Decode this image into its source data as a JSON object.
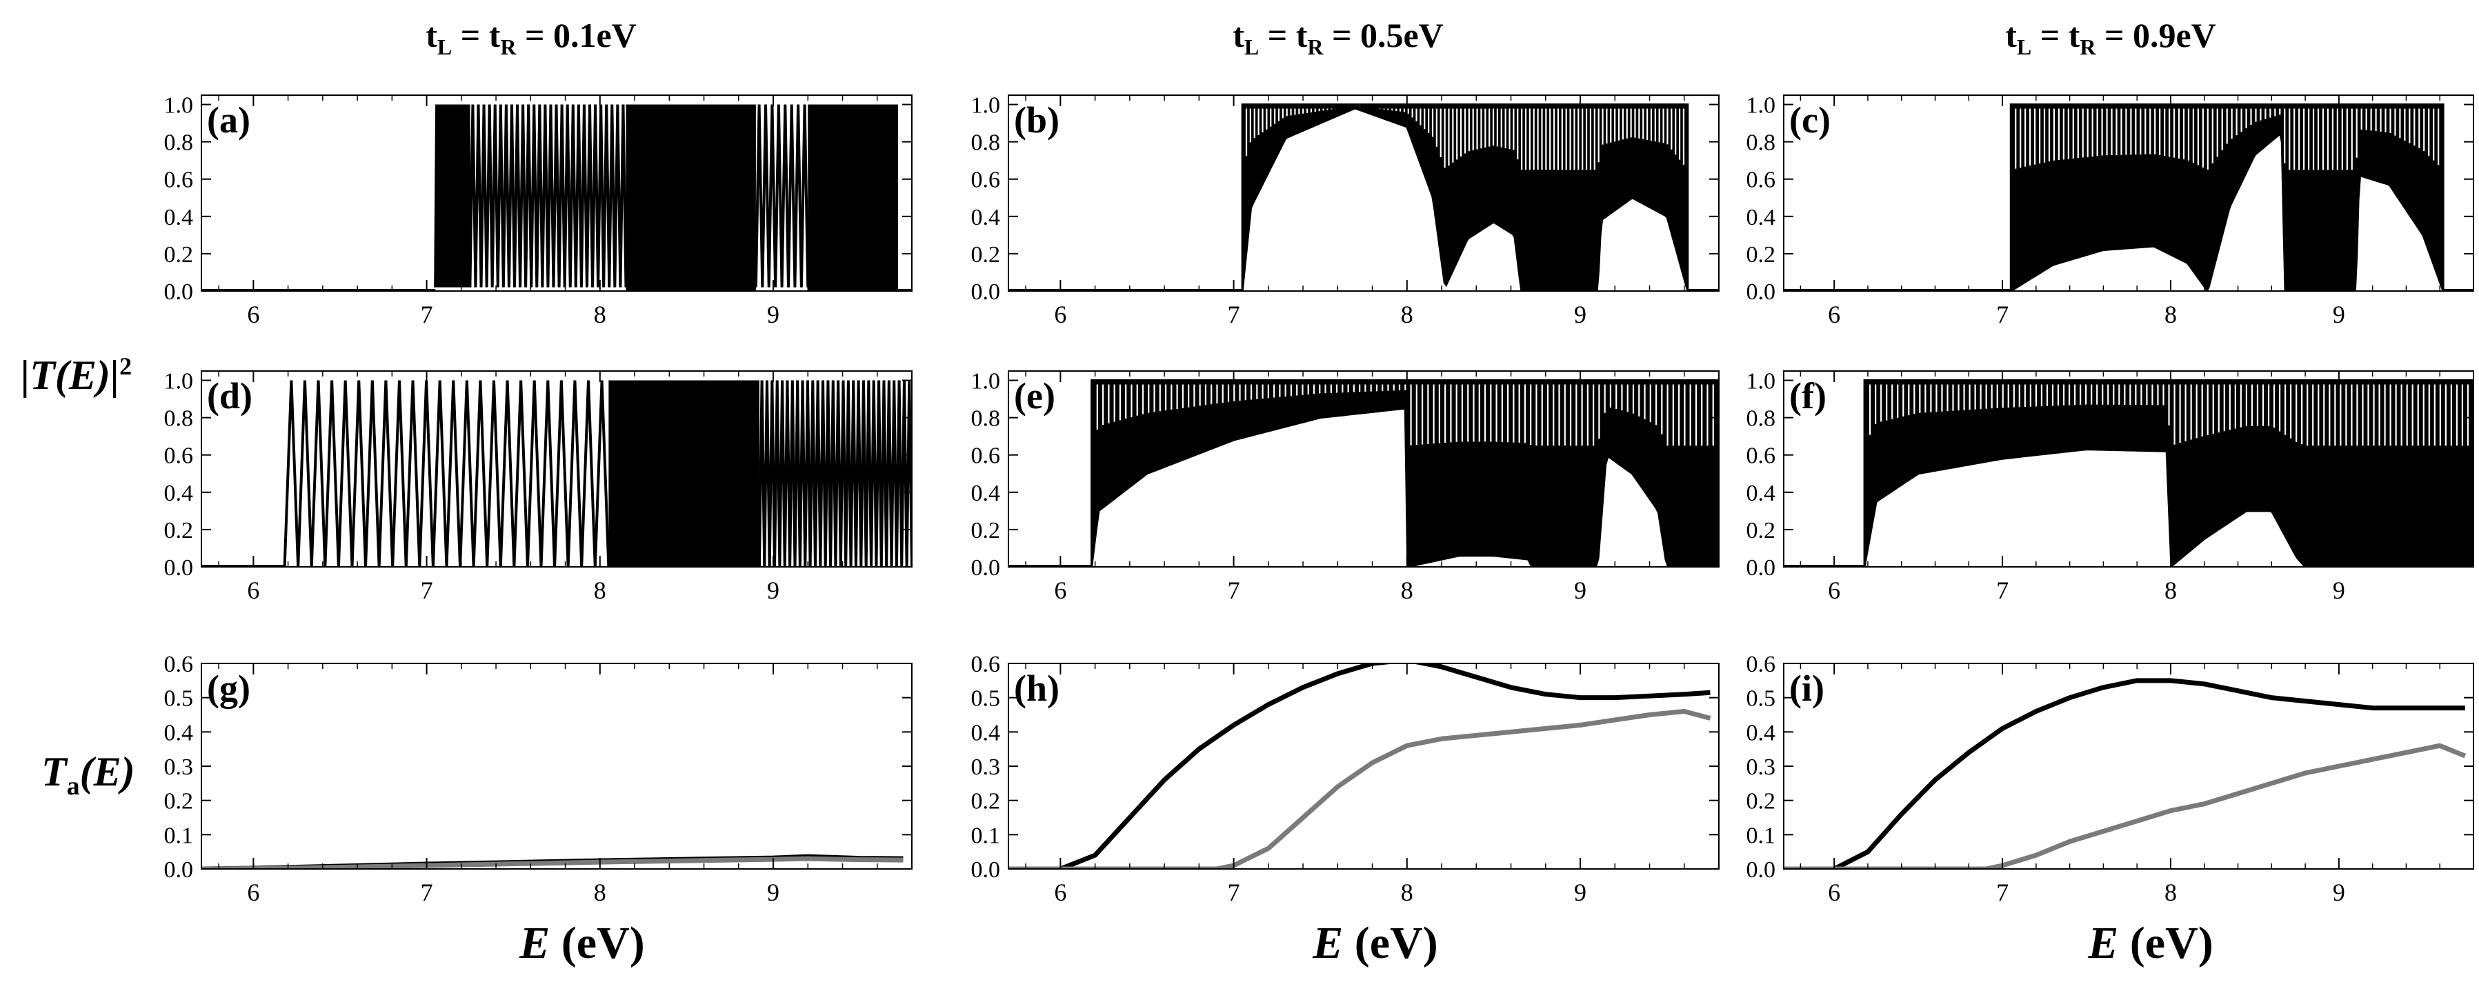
{
  "figure": {
    "column_titles": [
      {
        "value": "0.1eV",
        "t_left": "t",
        "sub_left": "L",
        "t_right": "t",
        "sub_right": "R"
      },
      {
        "value": "0.5eV",
        "t_left": "t",
        "sub_left": "L",
        "t_right": "t",
        "sub_right": "R"
      },
      {
        "value": "0.9eV",
        "t_left": "t",
        "sub_left": "L",
        "t_right": "t",
        "sub_right": "R"
      }
    ],
    "row_labels": {
      "transmission": {
        "open": "|",
        "main": "T(E)",
        "close": "|",
        "sup": "2"
      },
      "average": {
        "main": "T",
        "sub": "a",
        "arg": "(E)"
      }
    },
    "x_axis_label": {
      "symbol": "E",
      "unit": "(eV)"
    },
    "colors": {
      "line": "#000000",
      "series2": "#7a7a7a",
      "frame": "#000000",
      "background": "#ffffff"
    }
  },
  "chart_data": [
    {
      "type": "line",
      "panel": "(a)",
      "row": 0,
      "col": 0,
      "xlim": [
        5.7,
        9.8
      ],
      "ylim": [
        0,
        1.05
      ],
      "xticks": [
        6,
        7,
        8,
        9
      ],
      "yticks": [
        0.0,
        0.2,
        0.4,
        0.6,
        0.8,
        1.0
      ],
      "ytick_labels": [
        "0.0",
        "0.2",
        "0.4",
        "0.6",
        "0.8",
        "1.0"
      ],
      "series": [
        {
          "name": "|T(E)|^2",
          "kind": "oscillation",
          "onset": 7.05,
          "end": 9.72,
          "segments": [
            [
              7.05,
              7.25,
              13,
              1.0,
              0.02
            ],
            [
              7.25,
              8.15,
              28,
              1.0,
              0.02
            ],
            [
              8.15,
              8.9,
              0,
              1.0,
              0.0
            ],
            [
              8.9,
              9.2,
              8,
              1.0,
              0.02
            ],
            [
              9.2,
              9.72,
              0,
              1.0,
              0.0
            ]
          ]
        }
      ]
    },
    {
      "type": "line",
      "panel": "(b)",
      "row": 0,
      "col": 1,
      "xlim": [
        5.7,
        9.8
      ],
      "ylim": [
        0,
        1.05
      ],
      "xticks": [
        6,
        7,
        8,
        9
      ],
      "yticks": [
        0.0,
        0.2,
        0.4,
        0.6,
        0.8,
        1.0
      ],
      "ytick_labels": [
        "0.0",
        "0.2",
        "0.4",
        "0.6",
        "0.8",
        "1.0"
      ],
      "series": [
        {
          "name": "|T(E)|^2",
          "kind": "envelope",
          "onset": 7.05,
          "end": 9.62,
          "band_lower": [
            [
              7.05,
              0.0
            ],
            [
              7.1,
              0.45
            ],
            [
              7.3,
              0.82
            ],
            [
              7.7,
              0.98
            ],
            [
              8.0,
              0.88
            ],
            [
              8.15,
              0.5
            ],
            [
              8.22,
              0.02
            ],
            [
              8.35,
              0.28
            ],
            [
              8.5,
              0.37
            ],
            [
              8.62,
              0.3
            ],
            [
              8.66,
              0.0
            ],
            [
              9.1,
              0.0
            ],
            [
              9.12,
              0.38
            ],
            [
              9.3,
              0.5
            ],
            [
              9.5,
              0.4
            ],
            [
              9.62,
              0.0
            ]
          ],
          "band_upper": [
            [
              7.05,
              1.0
            ],
            [
              9.62,
              1.0
            ]
          ],
          "stripe_count": 110
        }
      ]
    },
    {
      "type": "line",
      "panel": "(c)",
      "row": 0,
      "col": 2,
      "xlim": [
        5.7,
        9.8
      ],
      "ylim": [
        0,
        1.05
      ],
      "xticks": [
        6,
        7,
        8,
        9
      ],
      "yticks": [
        0.0,
        0.2,
        0.4,
        0.6,
        0.8,
        1.0
      ],
      "ytick_labels": [
        "0.0",
        "0.2",
        "0.4",
        "0.6",
        "0.8",
        "1.0"
      ],
      "series": [
        {
          "name": "|T(E)|^2",
          "kind": "envelope",
          "onset": 7.05,
          "end": 9.62,
          "band_lower": [
            [
              7.05,
              0.0
            ],
            [
              7.3,
              0.14
            ],
            [
              7.6,
              0.22
            ],
            [
              7.9,
              0.24
            ],
            [
              8.1,
              0.15
            ],
            [
              8.22,
              0.0
            ],
            [
              8.35,
              0.45
            ],
            [
              8.5,
              0.73
            ],
            [
              8.66,
              0.85
            ],
            [
              8.68,
              0.0
            ],
            [
              9.1,
              0.0
            ],
            [
              9.12,
              0.62
            ],
            [
              9.3,
              0.57
            ],
            [
              9.5,
              0.3
            ],
            [
              9.62,
              0.0
            ]
          ],
          "band_upper": [
            [
              7.05,
              1.0
            ],
            [
              9.62,
              1.0
            ]
          ],
          "stripe_count": 90
        }
      ]
    },
    {
      "type": "line",
      "panel": "(d)",
      "row": 1,
      "col": 0,
      "xlim": [
        5.7,
        9.8
      ],
      "ylim": [
        0,
        1.05
      ],
      "xticks": [
        6,
        7,
        8,
        9
      ],
      "yticks": [
        0.0,
        0.2,
        0.4,
        0.6,
        0.8,
        1.0
      ],
      "ytick_labels": [
        "0.0",
        "0.2",
        "0.4",
        "0.6",
        "0.8",
        "1.0"
      ],
      "series": [
        {
          "name": "|T(E)|^2",
          "kind": "oscillation",
          "onset": 6.18,
          "end": 9.8,
          "segments": [
            [
              6.18,
              8.05,
              24,
              1.0,
              0.0
            ],
            [
              8.05,
              8.92,
              0,
              1.0,
              0.0
            ],
            [
              8.92,
              9.8,
              30,
              1.0,
              0.0
            ]
          ]
        }
      ]
    },
    {
      "type": "line",
      "panel": "(e)",
      "row": 1,
      "col": 1,
      "xlim": [
        5.7,
        9.8
      ],
      "ylim": [
        0,
        1.05
      ],
      "xticks": [
        6,
        7,
        8,
        9
      ],
      "yticks": [
        0.0,
        0.2,
        0.4,
        0.6,
        0.8,
        1.0
      ],
      "ytick_labels": [
        "0.0",
        "0.2",
        "0.4",
        "0.6",
        "0.8",
        "1.0"
      ],
      "series": [
        {
          "name": "|T(E)|^2",
          "kind": "envelope",
          "onset": 6.18,
          "end": 9.8,
          "band_lower": [
            [
              6.18,
              0.0
            ],
            [
              6.22,
              0.3
            ],
            [
              6.5,
              0.5
            ],
            [
              7.0,
              0.68
            ],
            [
              7.5,
              0.8
            ],
            [
              7.99,
              0.85
            ],
            [
              8.0,
              0.0
            ],
            [
              8.3,
              0.06
            ],
            [
              8.5,
              0.06
            ],
            [
              8.7,
              0.04
            ],
            [
              8.72,
              0.0
            ],
            [
              9.1,
              0.0
            ],
            [
              9.15,
              0.6
            ],
            [
              9.3,
              0.5
            ],
            [
              9.45,
              0.3
            ],
            [
              9.5,
              0.0
            ],
            [
              9.8,
              0.0
            ]
          ],
          "band_upper": [
            [
              6.18,
              1.0
            ],
            [
              9.8,
              1.0
            ]
          ],
          "stripe_count": 110
        }
      ]
    },
    {
      "type": "line",
      "panel": "(f)",
      "row": 1,
      "col": 2,
      "xlim": [
        5.7,
        9.8
      ],
      "ylim": [
        0,
        1.05
      ],
      "xticks": [
        6,
        7,
        8,
        9
      ],
      "yticks": [
        0.0,
        0.2,
        0.4,
        0.6,
        0.8,
        1.0
      ],
      "ytick_labels": [
        "0.0",
        "0.2",
        "0.4",
        "0.6",
        "0.8",
        "1.0"
      ],
      "series": [
        {
          "name": "|T(E)|^2",
          "kind": "envelope",
          "onset": 6.18,
          "end": 9.8,
          "band_lower": [
            [
              6.18,
              0.0
            ],
            [
              6.25,
              0.35
            ],
            [
              6.5,
              0.5
            ],
            [
              7.0,
              0.58
            ],
            [
              7.5,
              0.63
            ],
            [
              7.98,
              0.62
            ],
            [
              8.0,
              0.0
            ],
            [
              8.2,
              0.15
            ],
            [
              8.45,
              0.3
            ],
            [
              8.6,
              0.3
            ],
            [
              8.75,
              0.05
            ],
            [
              8.8,
              0.0
            ],
            [
              9.8,
              0.0
            ]
          ],
          "band_upper": [
            [
              6.18,
              1.0
            ],
            [
              9.8,
              1.0
            ]
          ],
          "stripe_count": 110
        }
      ]
    },
    {
      "type": "line",
      "panel": "(g)",
      "row": 2,
      "col": 0,
      "xlim": [
        5.7,
        9.8
      ],
      "ylim": [
        0,
        0.6
      ],
      "xticks": [
        6,
        7,
        8,
        9
      ],
      "yticks": [
        0.0,
        0.1,
        0.2,
        0.3,
        0.4,
        0.5,
        0.6
      ],
      "ytick_labels": [
        "0.0",
        "0.1",
        "0.2",
        "0.3",
        "0.4",
        "0.5",
        "0.6"
      ],
      "series": [
        {
          "name": "black",
          "color": "#000000",
          "x": [
            5.7,
            6.0,
            6.5,
            7.0,
            7.5,
            8.0,
            8.5,
            9.0,
            9.2,
            9.5,
            9.75
          ],
          "y": [
            0.0,
            0.002,
            0.008,
            0.014,
            0.019,
            0.024,
            0.028,
            0.032,
            0.036,
            0.031,
            0.03
          ]
        },
        {
          "name": "gray",
          "color": "#7a7a7a",
          "x": [
            5.7,
            6.0,
            6.5,
            7.0,
            7.5,
            8.0,
            8.5,
            9.0,
            9.2,
            9.5,
            9.75
          ],
          "y": [
            0.0,
            0.001,
            0.005,
            0.01,
            0.015,
            0.02,
            0.024,
            0.028,
            0.03,
            0.027,
            0.026
          ]
        }
      ]
    },
    {
      "type": "line",
      "panel": "(h)",
      "row": 2,
      "col": 1,
      "xlim": [
        5.7,
        9.8
      ],
      "ylim": [
        0,
        0.6
      ],
      "xticks": [
        6,
        7,
        8,
        9
      ],
      "yticks": [
        0.0,
        0.1,
        0.2,
        0.3,
        0.4,
        0.5,
        0.6
      ],
      "ytick_labels": [
        "0.0",
        "0.1",
        "0.2",
        "0.3",
        "0.4",
        "0.5",
        "0.6"
      ],
      "series": [
        {
          "name": "black",
          "color": "#000000",
          "x": [
            5.7,
            6.0,
            6.2,
            6.4,
            6.6,
            6.8,
            7.0,
            7.2,
            7.4,
            7.6,
            7.8,
            8.0,
            8.2,
            8.4,
            8.6,
            8.8,
            9.0,
            9.2,
            9.4,
            9.6,
            9.75
          ],
          "y": [
            0.0,
            0.0,
            0.04,
            0.15,
            0.26,
            0.35,
            0.42,
            0.48,
            0.53,
            0.57,
            0.6,
            0.61,
            0.59,
            0.56,
            0.53,
            0.51,
            0.5,
            0.5,
            0.505,
            0.51,
            0.515
          ]
        },
        {
          "name": "gray",
          "color": "#7a7a7a",
          "x": [
            5.7,
            6.9,
            7.0,
            7.2,
            7.4,
            7.6,
            7.8,
            8.0,
            8.2,
            8.4,
            8.6,
            8.8,
            9.0,
            9.2,
            9.4,
            9.6,
            9.75
          ],
          "y": [
            0.0,
            0.0,
            0.01,
            0.06,
            0.15,
            0.24,
            0.31,
            0.36,
            0.38,
            0.39,
            0.4,
            0.41,
            0.42,
            0.435,
            0.45,
            0.46,
            0.44
          ]
        }
      ]
    },
    {
      "type": "line",
      "panel": "(i)",
      "row": 2,
      "col": 2,
      "xlim": [
        5.7,
        9.8
      ],
      "ylim": [
        0,
        0.6
      ],
      "xticks": [
        6,
        7,
        8,
        9
      ],
      "yticks": [
        0.0,
        0.1,
        0.2,
        0.3,
        0.4,
        0.5,
        0.6
      ],
      "ytick_labels": [
        "0.0",
        "0.1",
        "0.2",
        "0.3",
        "0.4",
        "0.5",
        "0.6"
      ],
      "series": [
        {
          "name": "black",
          "color": "#000000",
          "x": [
            5.7,
            6.0,
            6.2,
            6.4,
            6.6,
            6.8,
            7.0,
            7.2,
            7.4,
            7.6,
            7.8,
            8.0,
            8.2,
            8.4,
            8.6,
            8.8,
            9.0,
            9.2,
            9.4,
            9.6,
            9.75
          ],
          "y": [
            0.0,
            0.0,
            0.05,
            0.16,
            0.26,
            0.34,
            0.41,
            0.46,
            0.5,
            0.53,
            0.55,
            0.55,
            0.54,
            0.52,
            0.5,
            0.49,
            0.48,
            0.47,
            0.47,
            0.47,
            0.47
          ]
        },
        {
          "name": "gray",
          "color": "#7a7a7a",
          "x": [
            5.7,
            6.9,
            7.0,
            7.2,
            7.4,
            7.6,
            7.8,
            8.0,
            8.2,
            8.4,
            8.6,
            8.8,
            9.0,
            9.2,
            9.4,
            9.6,
            9.75
          ],
          "y": [
            0.0,
            0.0,
            0.01,
            0.04,
            0.08,
            0.11,
            0.14,
            0.17,
            0.19,
            0.22,
            0.25,
            0.28,
            0.3,
            0.32,
            0.34,
            0.36,
            0.33
          ]
        }
      ]
    }
  ]
}
